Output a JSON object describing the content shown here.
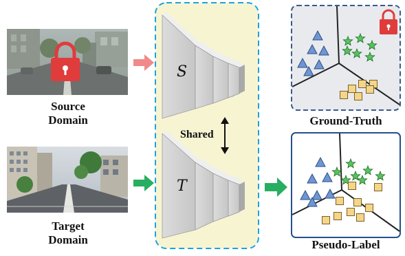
{
  "source": {
    "line1": "Source",
    "line2": "Domain"
  },
  "target": {
    "line1": "Target",
    "line2": "Domain"
  },
  "shared_label": "Shared",
  "network_s_symbol": "S",
  "network_t_symbol": "T",
  "ground_truth_label": "Ground-Truth",
  "pseudo_label_label": "Pseudo-Label",
  "colors": {
    "network_panel_fill": "#f7f4d2",
    "network_panel_border": "#1aa3e0",
    "gt_panel_fill": "#e8eaee",
    "gt_panel_border": "#3b5a8a",
    "pl_panel_border": "#244f8c",
    "source_arrow": "#f08a8a",
    "target_arrow": "#27ae60",
    "lock": "#e03c3c",
    "triangle": "#6f96d2",
    "star": "#57c45a",
    "square": "#f4d58c"
  },
  "icons": [
    "lock-icon",
    "triangle-marker-icon",
    "star-marker-icon",
    "square-marker-icon",
    "double-arrow-icon"
  ]
}
